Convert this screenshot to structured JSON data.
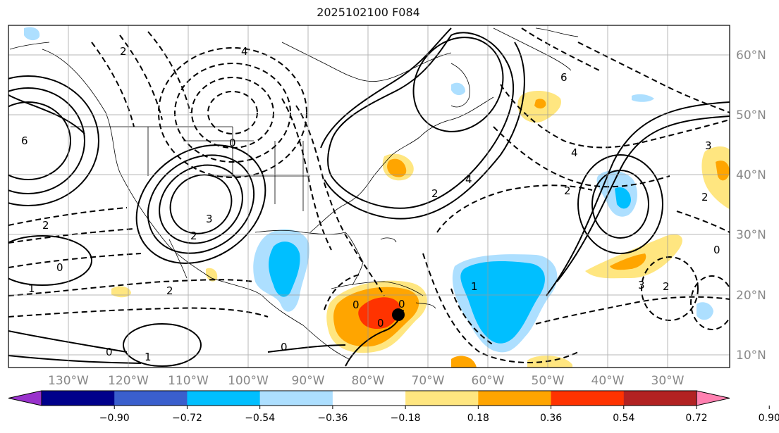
{
  "title": "2025102100 F084",
  "lon_labels": [
    "130°W",
    "120°W",
    "110°W",
    "100°W",
    "90°W",
    "80°W",
    "70°W",
    "60°W",
    "50°W",
    "40°W",
    "30°W"
  ],
  "lat_labels": [
    "60°N",
    "50°N",
    "40°N",
    "30°N",
    "20°N",
    "10°N"
  ],
  "colorbar": {
    "colors": [
      "#9932CC",
      "#00008B",
      "#3A5FCD",
      "#00BFFF",
      "#ADDFFF",
      "#FFFFFF",
      "#FFE680",
      "#FFA500",
      "#FF3300",
      "#B22222",
      "#FF80B0"
    ],
    "tick_labels": [
      "−0.90",
      "−0.72",
      "−0.54",
      "−0.36",
      "−0.18",
      "0.18",
      "0.36",
      "0.54",
      "0.72",
      "0.90"
    ]
  },
  "contour_labels": [
    "2",
    "4",
    "6",
    "0",
    "2",
    "3",
    "2",
    "0",
    "1",
    "2",
    "0",
    "0",
    "6",
    "4",
    "2",
    "3",
    "0",
    "0",
    "2",
    "1",
    "0",
    "4",
    "3",
    "2",
    "0",
    "1",
    "2"
  ]
}
